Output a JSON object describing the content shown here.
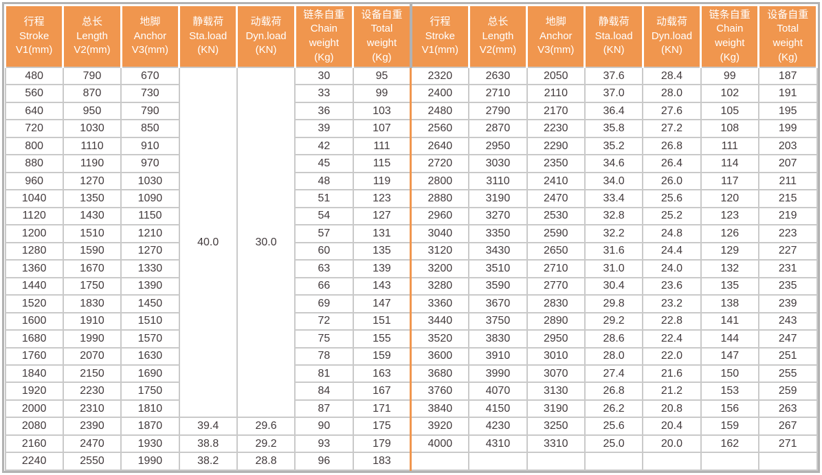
{
  "table": {
    "header_groups": [
      {
        "key": "stroke",
        "lines": [
          "行程",
          "Stroke",
          "V1(mm)"
        ]
      },
      {
        "key": "length",
        "lines": [
          "总长",
          "Length",
          "V2(mm)"
        ]
      },
      {
        "key": "anchor",
        "lines": [
          "地脚",
          "Anchor",
          "V3(mm)"
        ]
      },
      {
        "key": "sta-load",
        "lines": [
          "静载荷",
          "Sta.load",
          "(KN)"
        ]
      },
      {
        "key": "dyn-load",
        "lines": [
          "动载荷",
          "Dyn.load",
          "(KN)"
        ]
      },
      {
        "key": "chain-weight",
        "lines": [
          "链条自重",
          "Chain",
          "weight",
          "(Kg)"
        ]
      },
      {
        "key": "total-weight",
        "lines": [
          "设备自重",
          "Total",
          "weight",
          "(Kg)"
        ]
      }
    ],
    "merged": {
      "sta_load": "40.0",
      "dyn_load": "30.0",
      "span_rows": 20
    },
    "left_rows": [
      [
        "480",
        "790",
        "670",
        null,
        null,
        "30",
        "95"
      ],
      [
        "560",
        "870",
        "730",
        null,
        null,
        "33",
        "99"
      ],
      [
        "640",
        "950",
        "790",
        null,
        null,
        "36",
        "103"
      ],
      [
        "720",
        "1030",
        "850",
        null,
        null,
        "39",
        "107"
      ],
      [
        "800",
        "1110",
        "910",
        null,
        null,
        "42",
        "111"
      ],
      [
        "880",
        "1190",
        "970",
        null,
        null,
        "45",
        "115"
      ],
      [
        "960",
        "1270",
        "1030",
        null,
        null,
        "48",
        "119"
      ],
      [
        "1040",
        "1350",
        "1090",
        null,
        null,
        "51",
        "123"
      ],
      [
        "1120",
        "1430",
        "1150",
        null,
        null,
        "54",
        "127"
      ],
      [
        "1200",
        "1510",
        "1210",
        null,
        null,
        "57",
        "131"
      ],
      [
        "1280",
        "1590",
        "1270",
        null,
        null,
        "60",
        "135"
      ],
      [
        "1360",
        "1670",
        "1330",
        null,
        null,
        "63",
        "139"
      ],
      [
        "1440",
        "1750",
        "1390",
        null,
        null,
        "66",
        "143"
      ],
      [
        "1520",
        "1830",
        "1450",
        null,
        null,
        "69",
        "147"
      ],
      [
        "1600",
        "1910",
        "1510",
        null,
        null,
        "72",
        "151"
      ],
      [
        "1680",
        "1990",
        "1570",
        null,
        null,
        "75",
        "155"
      ],
      [
        "1760",
        "2070",
        "1630",
        null,
        null,
        "78",
        "159"
      ],
      [
        "1840",
        "2150",
        "1690",
        null,
        null,
        "81",
        "163"
      ],
      [
        "1920",
        "2230",
        "1750",
        null,
        null,
        "84",
        "167"
      ],
      [
        "2000",
        "2310",
        "1810",
        null,
        null,
        "87",
        "171"
      ],
      [
        "2080",
        "2390",
        "1870",
        "39.4",
        "29.6",
        "90",
        "175"
      ],
      [
        "2160",
        "2470",
        "1930",
        "38.8",
        "29.2",
        "93",
        "179"
      ],
      [
        "2240",
        "2550",
        "1990",
        "38.2",
        "28.8",
        "96",
        "183"
      ]
    ],
    "right_rows": [
      [
        "2320",
        "2630",
        "2050",
        "37.6",
        "28.4",
        "99",
        "187"
      ],
      [
        "2400",
        "2710",
        "2110",
        "37.0",
        "28.0",
        "102",
        "191"
      ],
      [
        "2480",
        "2790",
        "2170",
        "36.4",
        "27.6",
        "105",
        "195"
      ],
      [
        "2560",
        "2870",
        "2230",
        "35.8",
        "27.2",
        "108",
        "199"
      ],
      [
        "2640",
        "2950",
        "2290",
        "35.2",
        "26.8",
        "111",
        "203"
      ],
      [
        "2720",
        "3030",
        "2350",
        "34.6",
        "26.4",
        "114",
        "207"
      ],
      [
        "2800",
        "3110",
        "2410",
        "34.0",
        "26.0",
        "117",
        "211"
      ],
      [
        "2880",
        "3190",
        "2470",
        "33.4",
        "25.6",
        "120",
        "215"
      ],
      [
        "2960",
        "3270",
        "2530",
        "32.8",
        "25.2",
        "123",
        "219"
      ],
      [
        "3040",
        "3350",
        "2590",
        "32.2",
        "24.8",
        "126",
        "223"
      ],
      [
        "3120",
        "3430",
        "2650",
        "31.6",
        "24.4",
        "129",
        "227"
      ],
      [
        "3200",
        "3510",
        "2710",
        "31.0",
        "24.0",
        "132",
        "231"
      ],
      [
        "3280",
        "3590",
        "2770",
        "30.4",
        "23.6",
        "135",
        "235"
      ],
      [
        "3360",
        "3670",
        "2830",
        "29.8",
        "23.2",
        "138",
        "239"
      ],
      [
        "3440",
        "3750",
        "2890",
        "29.2",
        "22.8",
        "141",
        "243"
      ],
      [
        "3520",
        "3830",
        "2950",
        "28.6",
        "22.4",
        "144",
        "247"
      ],
      [
        "3600",
        "3910",
        "3010",
        "28.0",
        "22.0",
        "147",
        "251"
      ],
      [
        "3680",
        "3990",
        "3070",
        "27.4",
        "21.6",
        "150",
        "255"
      ],
      [
        "3760",
        "4070",
        "3130",
        "26.8",
        "21.2",
        "153",
        "259"
      ],
      [
        "3840",
        "4150",
        "3190",
        "26.2",
        "20.8",
        "156",
        "263"
      ],
      [
        "3920",
        "4230",
        "3250",
        "25.6",
        "20.4",
        "159",
        "267"
      ],
      [
        "4000",
        "4310",
        "3310",
        "25.0",
        "20.0",
        "162",
        "271"
      ],
      [
        "",
        "",
        "",
        "",
        "",
        "",
        ""
      ]
    ]
  },
  "colors": {
    "header_bg": "#F0964E",
    "header_text": "#FFFFFF",
    "body_text": "#423A3C",
    "grid_line": "#C9C9C9",
    "outer_border": "#B2B2B2",
    "half_divider": "#F0964E"
  }
}
